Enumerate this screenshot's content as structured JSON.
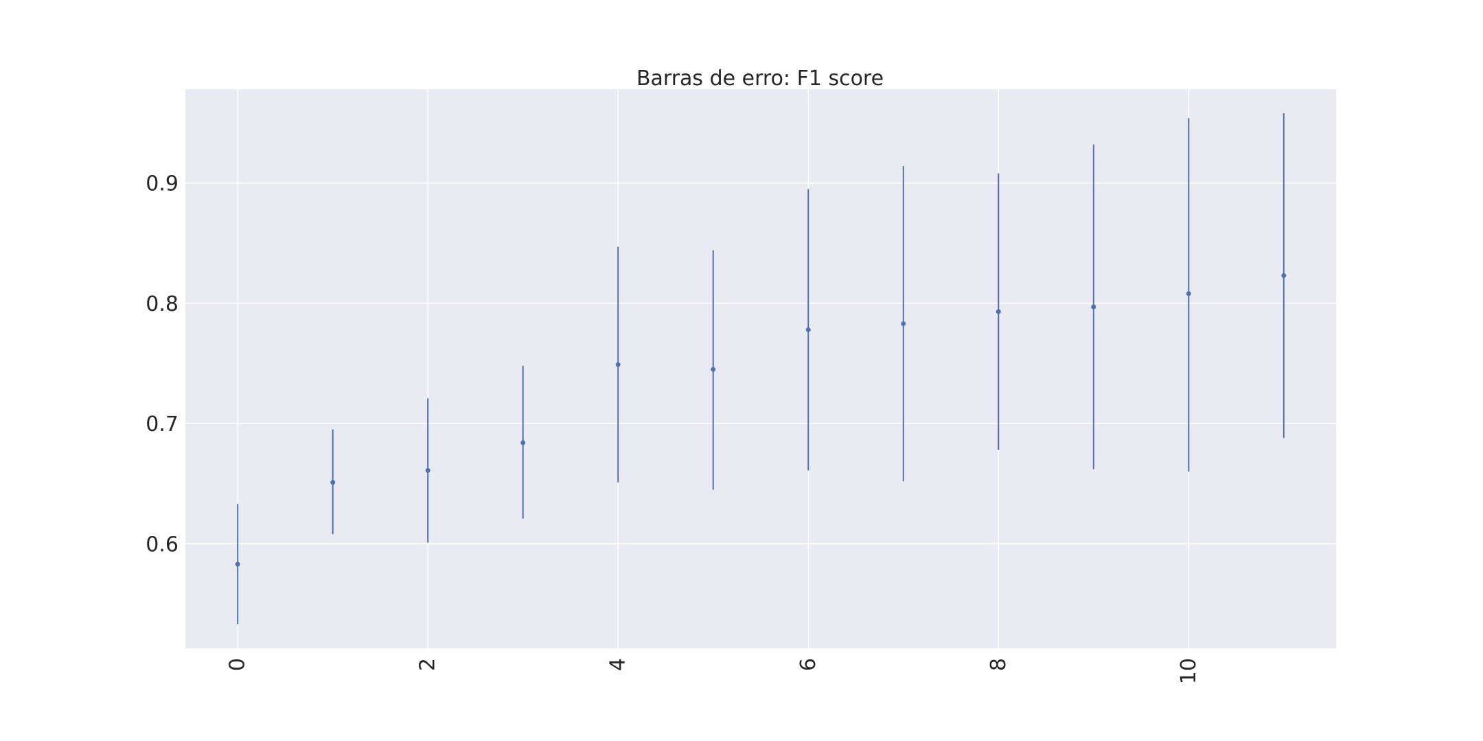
{
  "chart_data": {
    "type": "errorbar",
    "title": "Barras de erro: F1 score",
    "xlabel": "",
    "ylabel": "",
    "x": [
      0,
      1,
      2,
      3,
      4,
      5,
      6,
      7,
      8,
      9,
      10,
      11
    ],
    "values": [
      0.583,
      0.651,
      0.661,
      0.684,
      0.749,
      0.745,
      0.778,
      0.783,
      0.793,
      0.797,
      0.808,
      0.823
    ],
    "lower": [
      0.533,
      0.608,
      0.601,
      0.621,
      0.651,
      0.645,
      0.661,
      0.652,
      0.678,
      0.662,
      0.66,
      0.688
    ],
    "upper": [
      0.633,
      0.695,
      0.721,
      0.748,
      0.847,
      0.844,
      0.895,
      0.914,
      0.908,
      0.932,
      0.954,
      0.958
    ],
    "xlim": [
      -0.55,
      11.55
    ],
    "ylim": [
      0.513,
      0.978
    ],
    "xticks": [
      0,
      2,
      4,
      6,
      8,
      10
    ],
    "xtick_labels": [
      "0",
      "2",
      "4",
      "6",
      "8",
      "10"
    ],
    "yticks": [
      0.6,
      0.7,
      0.8,
      0.9
    ],
    "ytick_labels": [
      "0.6",
      "0.7",
      "0.8",
      "0.9"
    ],
    "grid": true,
    "colors": {
      "plot_background": "#eaeaf2",
      "grid": "#ffffff",
      "series": "#4c72b0",
      "text": "#262626"
    }
  }
}
